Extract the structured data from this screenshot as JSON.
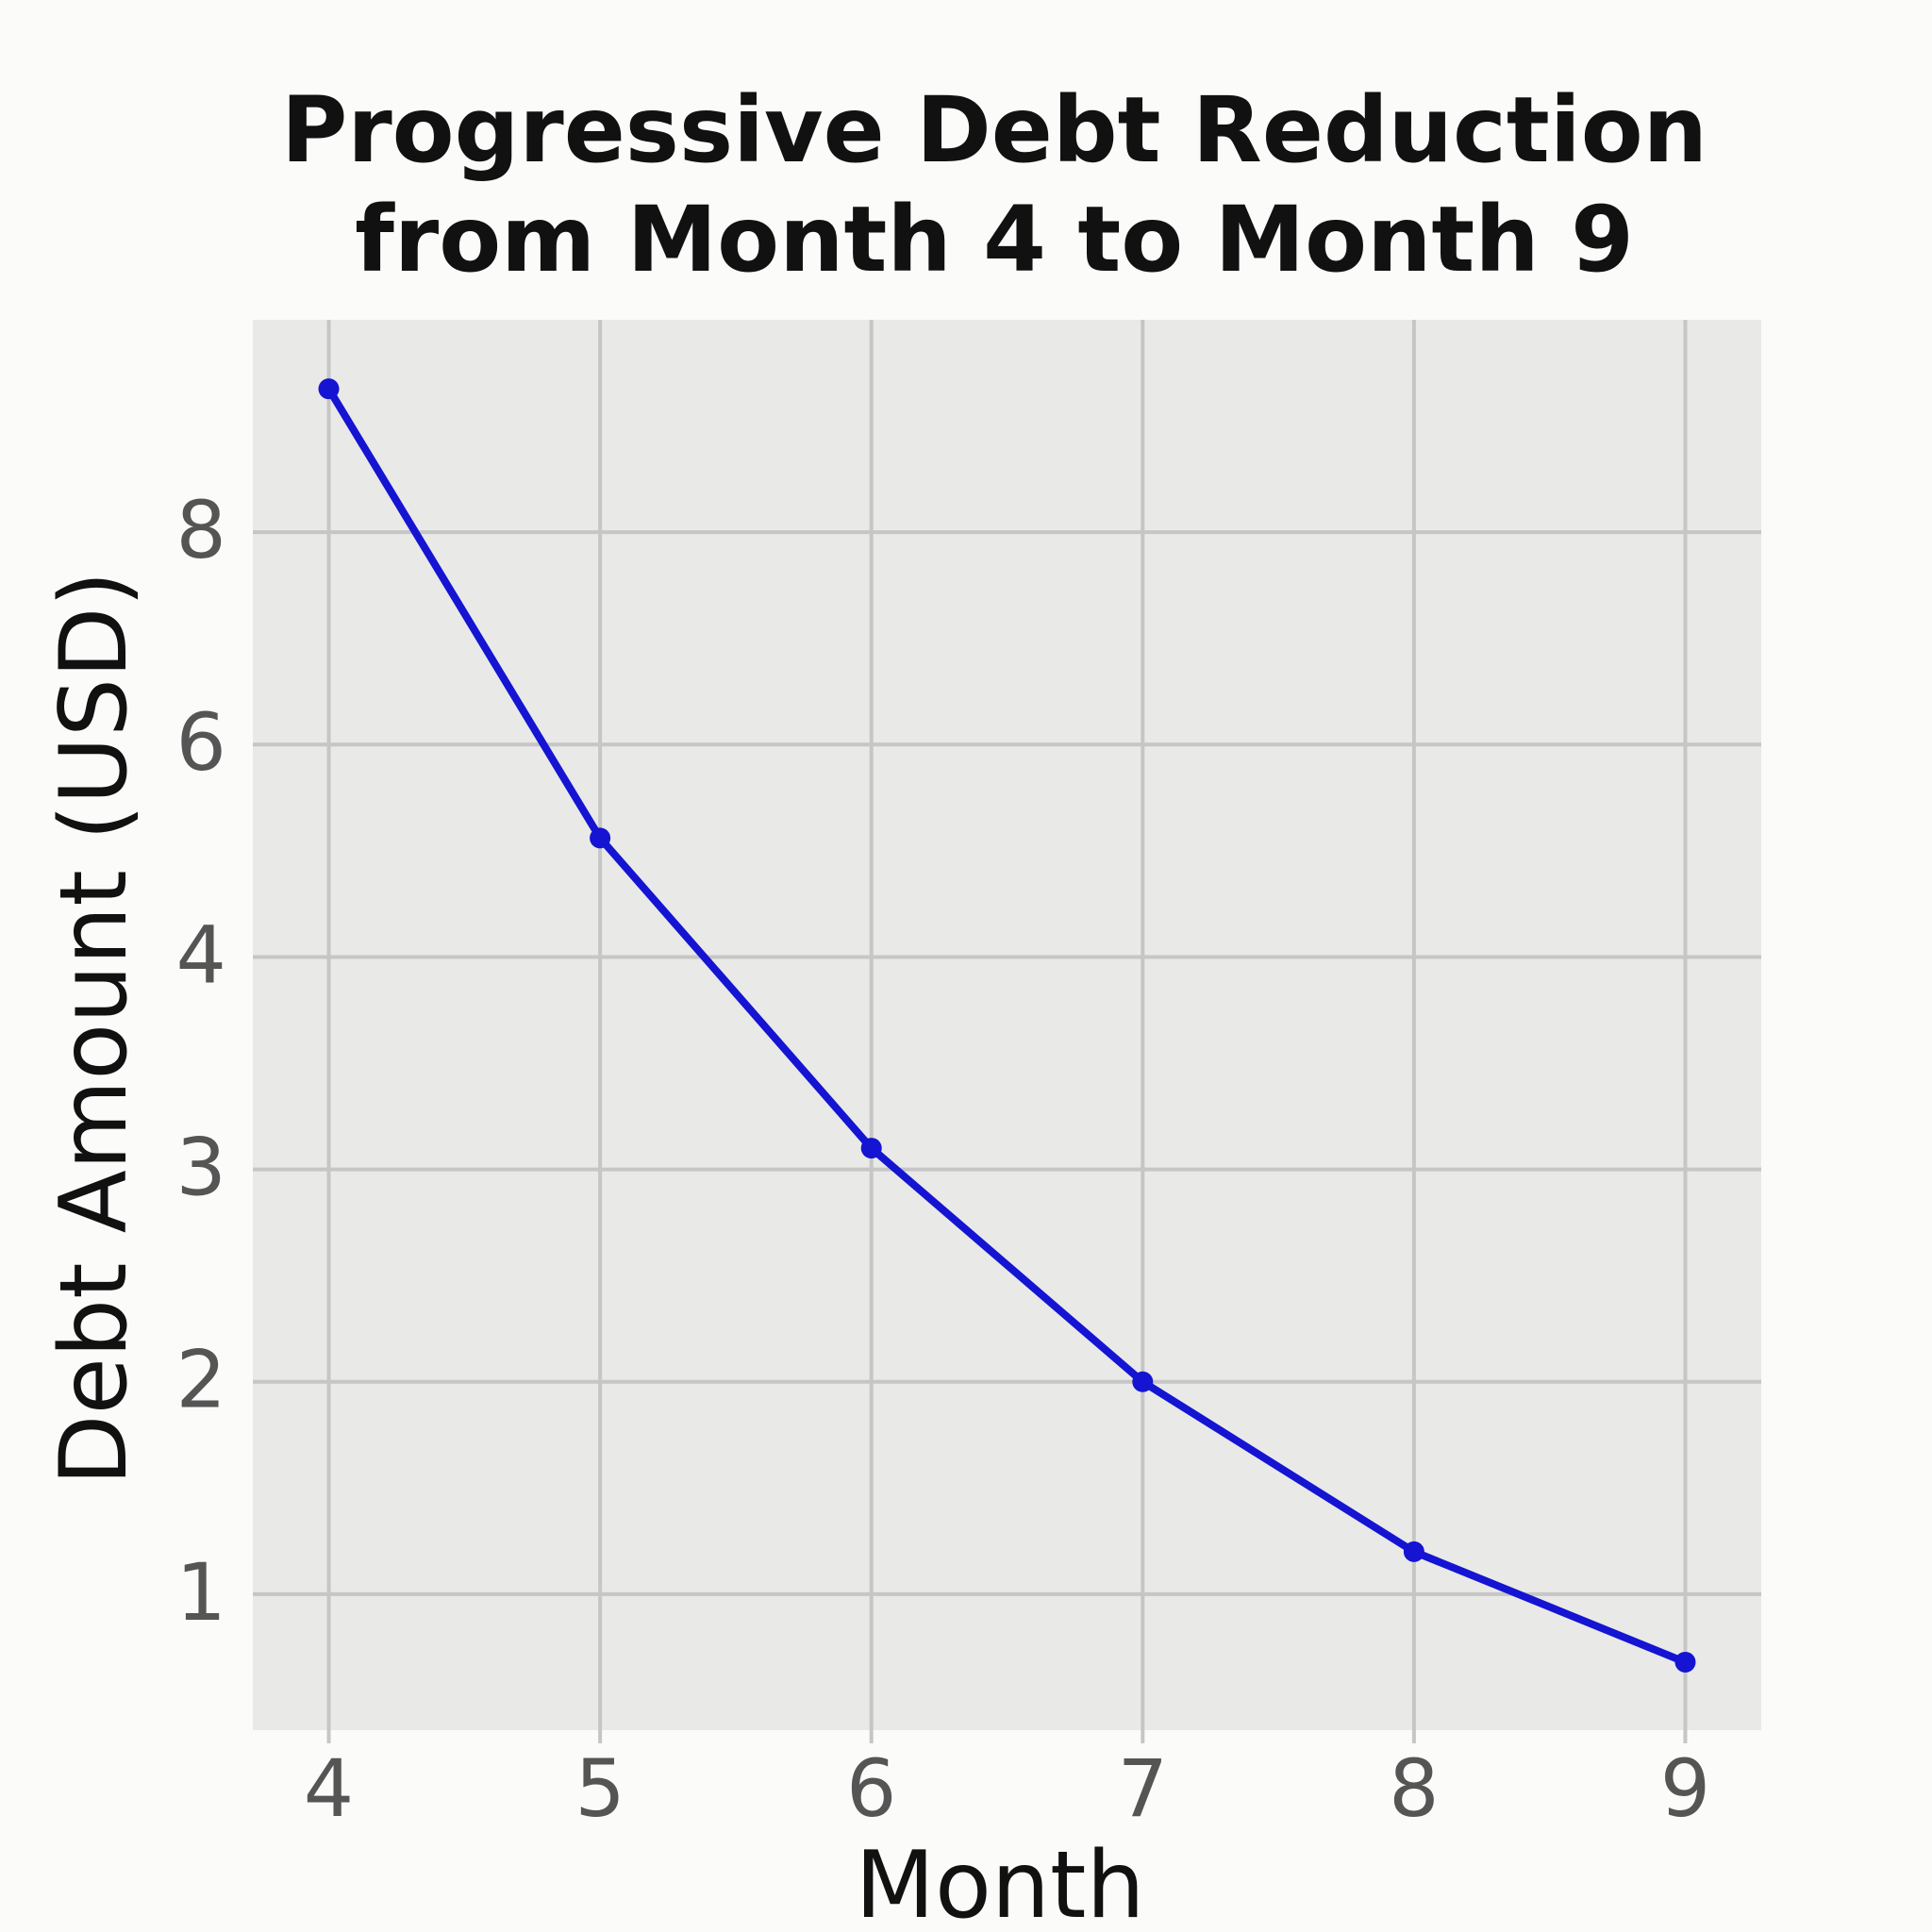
{
  "chart_data": {
    "type": "line",
    "title": "Progressive Debt Reduction from Month 4 to Month 9",
    "x_label": "Month",
    "y_label": "Debt Amount (USD)",
    "x": [
      4,
      5,
      6,
      7,
      8,
      9
    ],
    "series": [
      {
        "name": "Debt",
        "color": "#1414d2",
        "values": [
          9.35,
          5.12,
          3.1,
          2.0,
          1.2,
          0.68
        ]
      }
    ],
    "xlim": [
      3.72,
      9.28
    ],
    "xticks": [
      4,
      5,
      6,
      7,
      8,
      9
    ],
    "ylim": [
      0.36,
      10
    ],
    "yticks": [
      1,
      2,
      3,
      4,
      6,
      8
    ],
    "grid": true
  }
}
